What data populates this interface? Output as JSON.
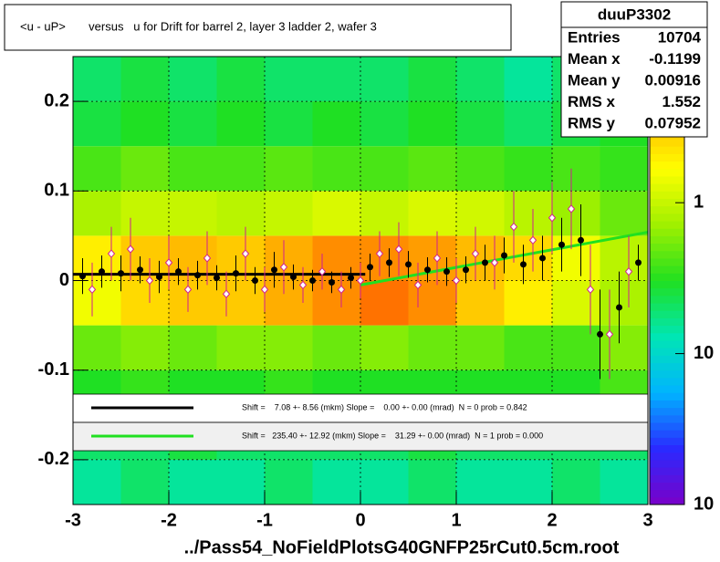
{
  "chart_data": {
    "type": "heatmap",
    "title": "<u - uP>       versus   u for Drift for barrel 2, layer 3 ladder 2, wafer 3",
    "xlabel": "../Pass54_NoFieldPlotsG40GNFP25rCut0.5cm.root",
    "xlim": [
      -3,
      3
    ],
    "ylim": [
      -0.25,
      0.25
    ],
    "xticks": [
      -3,
      -2,
      -1,
      0,
      1,
      2,
      3
    ],
    "yticks": [
      -0.2,
      -0.1,
      0,
      0.1,
      0.2
    ],
    "grid": true,
    "zlog": true,
    "zlim": [
      0.01,
      9.3
    ],
    "zticks": [
      {
        "value": 0.01,
        "label": "10"
      },
      {
        "value": 0.1,
        "label": "10"
      },
      1
    ],
    "palette": [
      "#7a00c8",
      "#2a2aff",
      "#00b4ff",
      "#00e6b4",
      "#20e020",
      "#a0f000",
      "#ffff00",
      "#ffb000",
      "#ff3000"
    ],
    "heatmap": {
      "xbins": [
        -3,
        -2.5,
        -2,
        -1.5,
        -1,
        -0.5,
        0,
        0.5,
        1,
        1.5,
        2,
        2.5,
        3
      ],
      "ybins": [
        -0.25,
        -0.2,
        -0.15,
        -0.1,
        -0.05,
        0,
        0.05,
        0.1,
        0.15,
        0.2,
        0.25
      ],
      "values": [
        [
          0.15,
          0.2,
          0.15,
          0.15,
          0.2,
          0.15,
          0.15,
          0.2,
          0.15,
          0.15,
          0.2,
          0.15
        ],
        [
          0.2,
          0.2,
          0.25,
          0.2,
          0.2,
          0.2,
          0.2,
          0.25,
          0.2,
          0.2,
          0.2,
          0.2
        ],
        [
          0.3,
          0.35,
          0.3,
          0.3,
          0.35,
          0.3,
          0.3,
          0.3,
          0.3,
          0.3,
          0.3,
          0.4
        ],
        [
          0.5,
          0.6,
          0.5,
          0.6,
          0.6,
          0.5,
          0.6,
          0.5,
          0.5,
          0.4,
          0.4,
          0.6
        ],
        [
          1.5,
          2.5,
          3,
          3,
          4,
          5,
          6,
          5,
          3,
          2,
          1.2,
          0.8
        ],
        [
          2,
          3,
          3.5,
          3,
          4,
          5,
          5,
          4.5,
          3.5,
          2.5,
          1.5,
          0.9
        ],
        [
          0.8,
          1,
          1,
          0.9,
          1,
          1.2,
          1,
          1.2,
          1.1,
          0.9,
          0.7,
          0.5
        ],
        [
          0.4,
          0.5,
          0.4,
          0.4,
          0.45,
          0.4,
          0.4,
          0.45,
          0.4,
          0.35,
          0.4,
          0.35
        ],
        [
          0.25,
          0.3,
          0.25,
          0.3,
          0.25,
          0.3,
          0.25,
          0.3,
          0.25,
          0.2,
          0.25,
          0.3
        ],
        [
          0.2,
          0.25,
          0.2,
          0.25,
          0.2,
          0.2,
          0.2,
          0.25,
          0.2,
          0.15,
          0.2,
          0.25
        ]
      ]
    },
    "profiles": [
      {
        "color": "#000000",
        "marker": "circle",
        "x": [
          -2.9,
          -2.7,
          -2.5,
          -2.3,
          -2.1,
          -1.9,
          -1.7,
          -1.5,
          -1.3,
          -1.1,
          -0.9,
          -0.7,
          -0.5,
          -0.3,
          -0.1,
          0.1,
          0.3,
          0.5,
          0.7,
          0.9,
          1.1,
          1.3,
          1.5,
          1.7,
          1.9,
          2.1,
          2.3,
          2.5,
          2.7,
          2.9
        ],
        "values": [
          0.005,
          0.01,
          0.008,
          0.012,
          0.004,
          0.01,
          0.006,
          0.003,
          0.008,
          0.0,
          0.012,
          0.004,
          0.0,
          -0.002,
          0.003,
          0.015,
          0.02,
          0.018,
          0.012,
          0.01,
          0.012,
          0.02,
          0.028,
          0.018,
          0.025,
          0.04,
          0.045,
          -0.06,
          -0.03,
          0.02
        ],
        "errors": [
          0.02,
          0.018,
          0.02,
          0.015,
          0.018,
          0.015,
          0.016,
          0.014,
          0.02,
          0.015,
          0.02,
          0.014,
          0.012,
          0.012,
          0.012,
          0.015,
          0.016,
          0.015,
          0.014,
          0.016,
          0.015,
          0.02,
          0.02,
          0.022,
          0.025,
          0.03,
          0.04,
          0.05,
          0.04,
          0.02
        ]
      },
      {
        "color": "#d02090",
        "marker": "diamond",
        "x": [
          -2.8,
          -2.6,
          -2.4,
          -2.2,
          -2.0,
          -1.8,
          -1.6,
          -1.4,
          -1.2,
          -1.0,
          -0.8,
          -0.6,
          -0.4,
          -0.2,
          0.0,
          0.2,
          0.4,
          0.6,
          0.8,
          1.0,
          1.2,
          1.4,
          1.6,
          1.8,
          2.0,
          2.2,
          2.4,
          2.6,
          2.8
        ],
        "values": [
          -0.01,
          0.03,
          0.035,
          0.0,
          0.02,
          -0.01,
          0.025,
          -0.015,
          0.03,
          -0.01,
          0.015,
          -0.005,
          0.01,
          -0.01,
          0.0,
          0.03,
          0.035,
          -0.005,
          0.025,
          0.0,
          0.03,
          0.02,
          0.06,
          0.045,
          0.07,
          0.08,
          -0.01,
          -0.06,
          0.01
        ],
        "errors": [
          0.03,
          0.03,
          0.035,
          0.025,
          0.03,
          0.025,
          0.03,
          0.025,
          0.03,
          0.025,
          0.03,
          0.02,
          0.02,
          0.02,
          0.02,
          0.025,
          0.03,
          0.025,
          0.03,
          0.025,
          0.03,
          0.03,
          0.04,
          0.035,
          0.04,
          0.045,
          0.05,
          0.05,
          0.04
        ]
      }
    ],
    "series": [
      {
        "name": "Shift =    7.08 +- 8.56 (mkm) Slope =    0.00 +- 0.00 (mrad)  N = 0 prob = 0.842",
        "color": "#000000",
        "x": [
          -3,
          0.05
        ],
        "values": [
          0.007,
          0.007
        ]
      },
      {
        "name": "Shift =   235.40 +- 12.92 (mkm) Slope =    31.29 +- 0.00 (mrad)  N = 1 prob = 0.000",
        "color": "#20e020",
        "x": [
          0,
          3
        ],
        "values": [
          -0.005,
          0.054
        ]
      }
    ],
    "stats": {
      "title": "duuP3302",
      "rows": [
        {
          "label": "Entries",
          "value": 10704
        },
        {
          "label": "Mean x",
          "value": -0.1199
        },
        {
          "label": "Mean y",
          "value": 0.00916
        },
        {
          "label": "RMS x",
          "value": 1.552
        },
        {
          "label": "RMS y",
          "value": 0.07952
        }
      ]
    }
  }
}
